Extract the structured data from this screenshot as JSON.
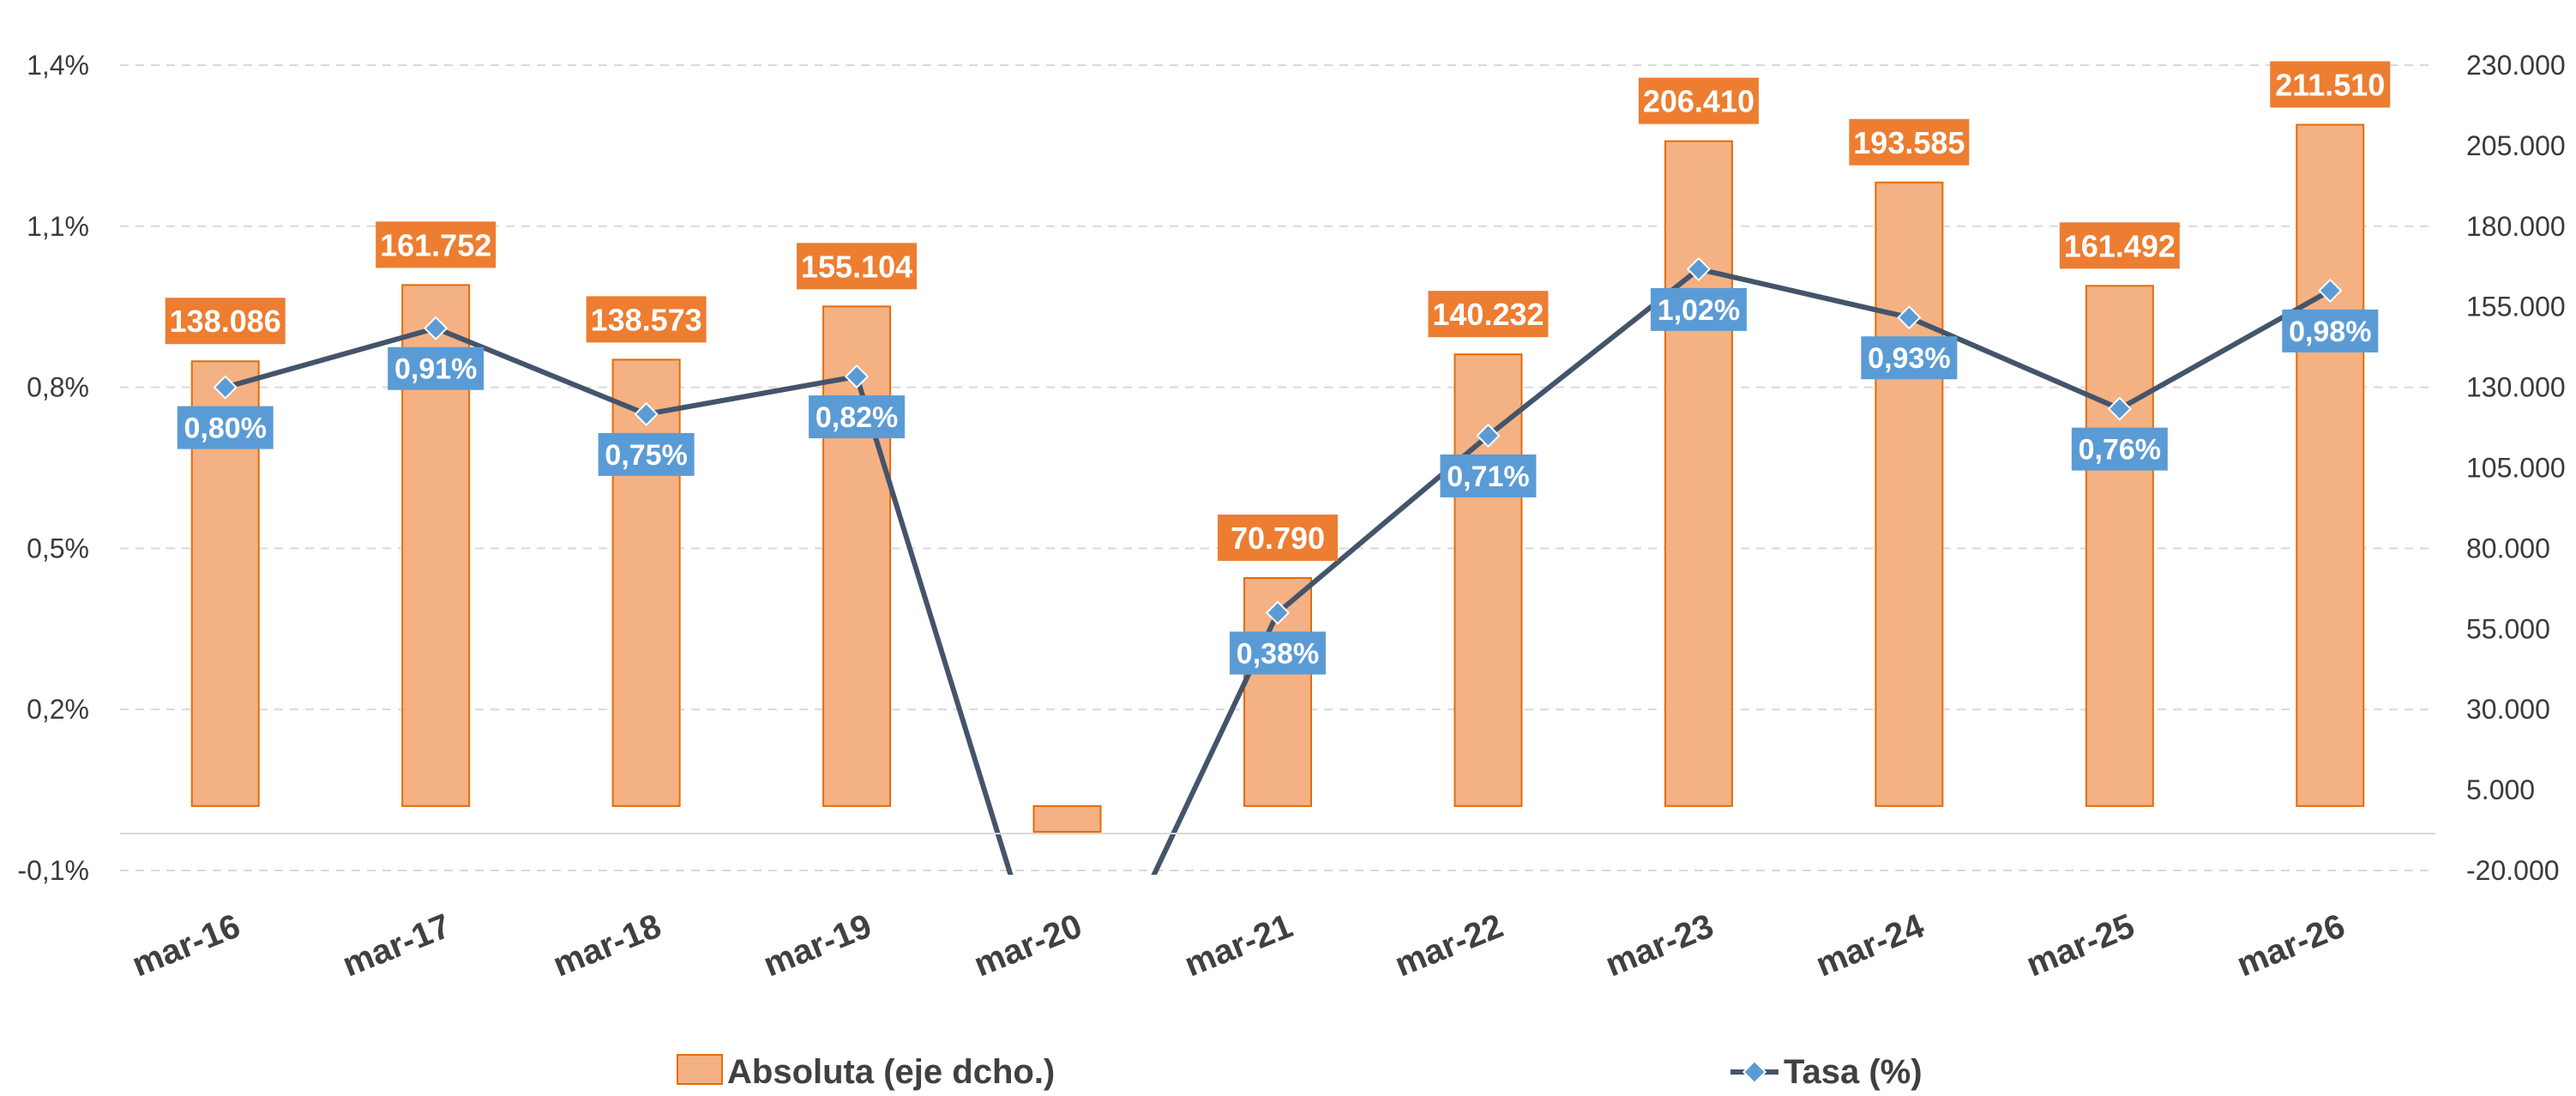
{
  "chart_data": {
    "type": "bar",
    "categories": [
      "mar-16",
      "mar-17",
      "mar-18",
      "mar-19",
      "mar-20",
      "mar-21",
      "mar-22",
      "mar-23",
      "mar-24",
      "mar-25",
      "mar-26"
    ],
    "series": [
      {
        "name": "Absoluta (eje dcho.)",
        "type": "bar",
        "axis": "right",
        "values": [
          138086,
          161752,
          138573,
          155104,
          -8000,
          70790,
          140232,
          206410,
          193585,
          161492,
          211510
        ],
        "labels": [
          "138.086",
          "161.752",
          "138.573",
          "155.104",
          "",
          "70.790",
          "140.232",
          "206.410",
          "193.585",
          "161.492",
          "211.510"
        ]
      },
      {
        "name": "Tasa (%)",
        "type": "line",
        "axis": "left",
        "values": [
          0.8,
          0.91,
          0.75,
          0.82,
          -0.45,
          0.38,
          0.71,
          1.02,
          0.93,
          0.76,
          0.98
        ],
        "labels": [
          "0,80%",
          "0,91%",
          "0,75%",
          "0,82%",
          "",
          "0,38%",
          "0,71%",
          "1,02%",
          "0,93%",
          "0,76%",
          "0,98%"
        ]
      }
    ],
    "y_left": {
      "min": -0.1,
      "max": 1.4,
      "ticks": [
        1.4,
        1.1,
        0.8,
        0.5,
        0.2,
        -0.1
      ],
      "tick_labels": [
        "1,4%",
        "1,1%",
        "0,8%",
        "0,5%",
        "0,2%",
        "-0,1%"
      ]
    },
    "y_right": {
      "min": -20000,
      "max": 230000,
      "ticks": [
        230000,
        205000,
        180000,
        155000,
        130000,
        105000,
        80000,
        55000,
        30000,
        5000,
        -20000
      ],
      "tick_labels": [
        "230.000",
        "205.000",
        "180.000",
        "155.000",
        "130.000",
        "105.000",
        "80.000",
        "55.000",
        "30.000",
        "5.000",
        "-20.000"
      ]
    },
    "grid": true,
    "legend": {
      "position": "bottom",
      "items": [
        "Absoluta (eje dcho.)",
        "Tasa (%)"
      ]
    },
    "colors": {
      "bar_fill": "#F4B183",
      "bar_stroke": "#E46C0A",
      "bar_label_bg": "#ED7D31",
      "line": "#44546A",
      "marker": "#5B9BD5",
      "line_label_bg": "#5B9BD5",
      "grid": "#D9D9D9"
    }
  }
}
